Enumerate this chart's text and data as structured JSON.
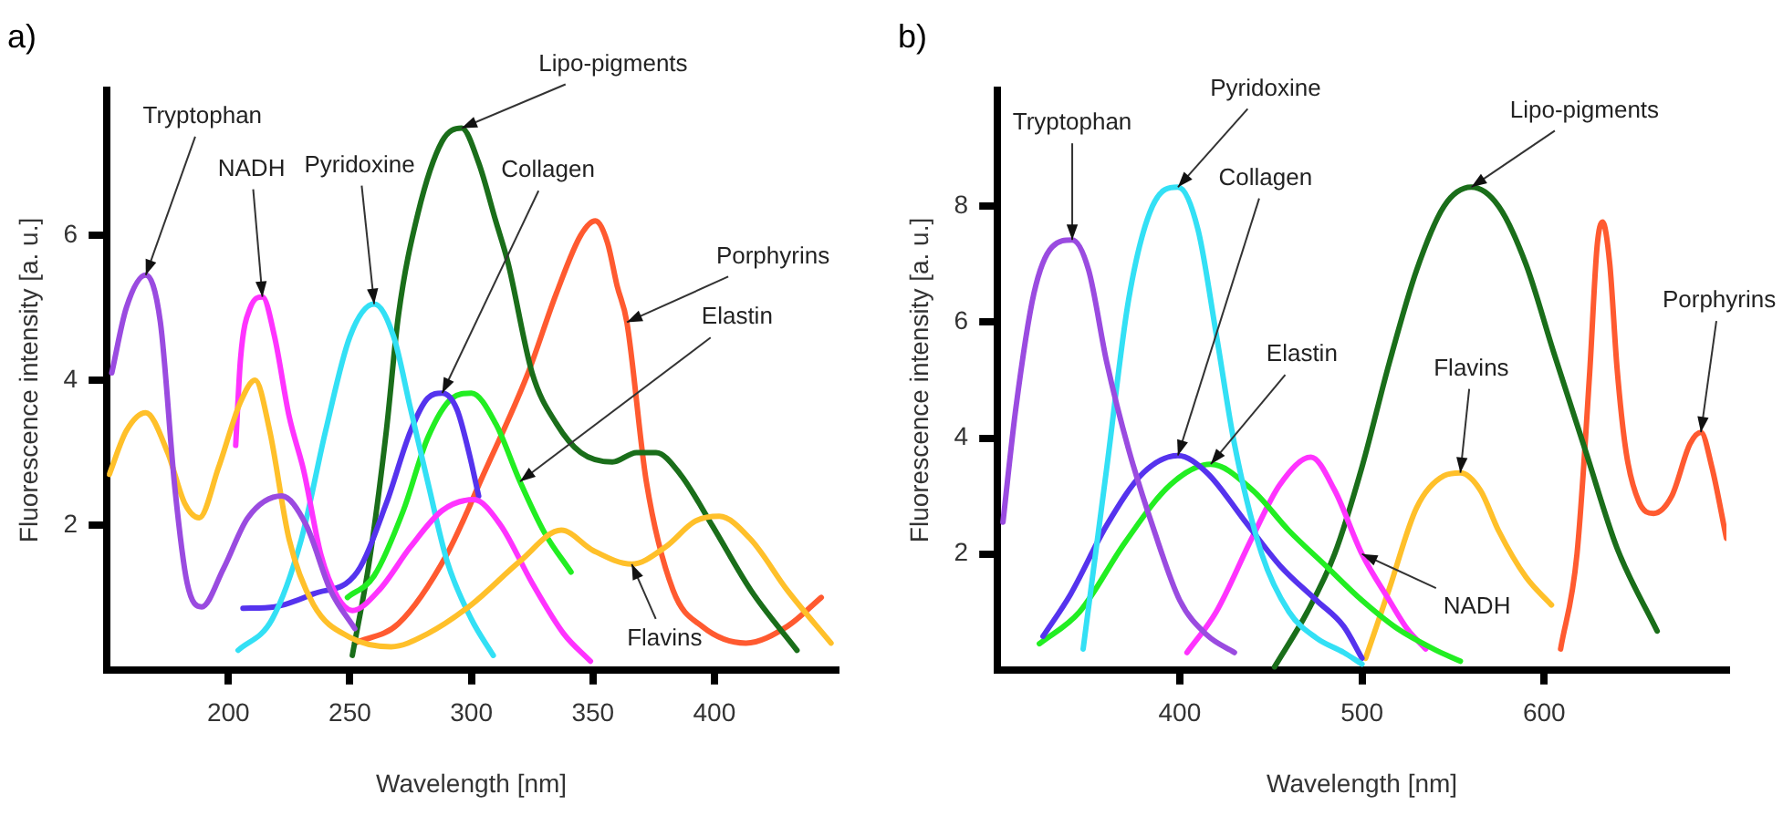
{
  "chart_data": [
    {
      "type": "line",
      "title": "a)",
      "xlabel": "Wavelength [nm]",
      "ylabel": "Fluorescence intensity [a. u.]",
      "xlim": [
        150,
        450
      ],
      "xticks": [
        200,
        250,
        300,
        350,
        400
      ],
      "ylim": [
        0,
        8
      ],
      "yticks": [
        2,
        4,
        6
      ],
      "grid": false,
      "line_style": "solid",
      "marker": "none",
      "series": [
        {
          "color": "#9a4be0",
          "x": [
            152,
            158,
            166,
            172,
            178,
            183,
            189,
            198,
            208,
            222,
            232,
            242,
            252
          ],
          "values": [
            4.1,
            5.0,
            5.45,
            4.8,
            2.5,
            1.2,
            0.87,
            1.4,
            2.1,
            2.4,
            2.0,
            1.1,
            0.57
          ]
        },
        {
          "color": "#ffc02a",
          "x": [
            151,
            158,
            166,
            175,
            182,
            188,
            196,
            205,
            211,
            217,
            225,
            235,
            250,
            267,
            282,
            300,
            320,
            337,
            350,
            366,
            380,
            392,
            402,
            415,
            430,
            448
          ],
          "values": [
            2.7,
            3.3,
            3.55,
            3.0,
            2.3,
            2.1,
            2.8,
            3.7,
            4.0,
            3.3,
            1.8,
            0.9,
            0.45,
            0.32,
            0.5,
            0.9,
            1.5,
            1.93,
            1.65,
            1.46,
            1.7,
            2.05,
            2.12,
            1.8,
            1.1,
            0.37
          ]
        },
        {
          "color": "#ff33ff",
          "x": [
            203,
            205,
            209,
            214,
            219,
            225,
            231,
            238,
            245,
            251,
            262,
            275,
            288,
            301,
            312,
            325,
            338,
            349
          ],
          "values": [
            3.1,
            4.3,
            5.0,
            5.15,
            4.6,
            3.5,
            2.75,
            1.6,
            1.0,
            0.82,
            1.1,
            1.7,
            2.2,
            2.35,
            2.0,
            1.2,
            0.5,
            0.12
          ]
        },
        {
          "color": "#33e0f5",
          "x": [
            204,
            218,
            230,
            240,
            250,
            260,
            268,
            275,
            282,
            290,
            300,
            309
          ],
          "values": [
            0.27,
            0.7,
            1.8,
            3.3,
            4.6,
            5.05,
            4.6,
            3.6,
            2.6,
            1.5,
            0.7,
            0.2
          ]
        },
        {
          "color": "#5533ee",
          "x": [
            206,
            219,
            235,
            253,
            265,
            275,
            282,
            288,
            294,
            299,
            303
          ],
          "values": [
            0.85,
            0.87,
            1.05,
            1.35,
            2.3,
            3.3,
            3.75,
            3.82,
            3.6,
            3.0,
            2.4
          ]
        },
        {
          "color": "#22ee22",
          "x": [
            249,
            260,
            272,
            282,
            292,
            300,
            310,
            320,
            330,
            341
          ],
          "values": [
            1.0,
            1.3,
            2.2,
            3.2,
            3.75,
            3.82,
            3.4,
            2.6,
            1.9,
            1.35
          ]
        },
        {
          "color": "#1a6e1a",
          "x": [
            251,
            258,
            265,
            270,
            278,
            288,
            296,
            303,
            310,
            315,
            325,
            335,
            345,
            358,
            368,
            376,
            386,
            399,
            415,
            434
          ],
          "values": [
            0.2,
            1.5,
            3.3,
            4.9,
            6.3,
            7.3,
            7.48,
            7.0,
            6.2,
            5.63,
            4.1,
            3.4,
            3.0,
            2.87,
            3.0,
            3.0,
            2.7,
            2.0,
            1.1,
            0.27
          ]
        },
        {
          "color": "#ff5a30",
          "x": [
            252,
            270,
            290,
            305,
            323,
            335,
            345,
            351,
            356,
            360,
            364,
            372,
            383,
            395,
            413,
            430,
            444
          ],
          "values": [
            0.37,
            0.64,
            1.6,
            2.7,
            4.07,
            5.2,
            6.0,
            6.2,
            5.9,
            5.3,
            4.8,
            2.6,
            1.1,
            0.6,
            0.37,
            0.6,
            1.0
          ]
        }
      ],
      "annotations": [
        {
          "text": "Tryptophan",
          "x": 166,
          "y": 5.45
        },
        {
          "text": "NADH",
          "x": 214,
          "y": 5.15
        },
        {
          "text": "Pyridoxine",
          "x": 260,
          "y": 5.05
        },
        {
          "text": "Lipo-pigments",
          "x": 296,
          "y": 7.48
        },
        {
          "text": "Collagen",
          "x": 288,
          "y": 3.82
        },
        {
          "text": "Porphyrins",
          "x": 364,
          "y": 4.8
        },
        {
          "text": "Elastin",
          "x": 320,
          "y": 2.6
        },
        {
          "text": "Flavins",
          "x": 366,
          "y": 1.46
        }
      ]
    },
    {
      "type": "line",
      "title": "b)",
      "xlabel": "Wavelength [nm]",
      "ylabel": "Fluorescence intensity [a. u.]",
      "xlim": [
        300,
        700
      ],
      "xticks": [
        400,
        500,
        600
      ],
      "ylim": [
        0,
        10
      ],
      "yticks": [
        2,
        4,
        6,
        8
      ],
      "grid": false,
      "line_style": "solid",
      "marker": "none",
      "series": [
        {
          "color": "#9a4be0",
          "x": [
            303,
            310,
            320,
            330,
            341,
            350,
            360,
            372,
            386,
            400,
            415,
            430
          ],
          "values": [
            2.55,
            4.5,
            6.5,
            7.3,
            7.42,
            6.9,
            5.3,
            3.8,
            2.4,
            1.2,
            0.6,
            0.3
          ]
        },
        {
          "color": "#33e0f5",
          "x": [
            347,
            360,
            372,
            385,
            399,
            410,
            420,
            430,
            445,
            460,
            475,
            490,
            500
          ],
          "values": [
            0.36,
            3.5,
            6.4,
            8.0,
            8.33,
            7.6,
            5.8,
            3.9,
            2.0,
            1.0,
            0.55,
            0.3,
            0.1
          ]
        },
        {
          "color": "#5533ee",
          "x": [
            325,
            340,
            360,
            380,
            399,
            415,
            435,
            455,
            475,
            490,
            500
          ],
          "values": [
            0.58,
            1.3,
            2.5,
            3.4,
            3.7,
            3.4,
            2.6,
            1.8,
            1.2,
            0.75,
            0.2
          ]
        },
        {
          "color": "#22ee22",
          "x": [
            323,
            345,
            370,
            395,
            417,
            440,
            460,
            480,
            500,
            520,
            540,
            554
          ],
          "values": [
            0.45,
            1.0,
            2.2,
            3.2,
            3.55,
            3.1,
            2.4,
            1.8,
            1.2,
            0.7,
            0.35,
            0.15
          ]
        },
        {
          "color": "#ff33ff",
          "x": [
            404,
            420,
            440,
            455,
            472,
            485,
            500,
            515,
            525,
            535
          ],
          "values": [
            0.3,
            1.0,
            2.3,
            3.2,
            3.67,
            3.1,
            2.0,
            1.2,
            0.7,
            0.36
          ]
        },
        {
          "color": "#1a6e1a",
          "x": [
            452,
            470,
            485,
            500,
            515,
            530,
            545,
            560,
            575,
            590,
            605,
            623,
            640,
            662
          ],
          "values": [
            0.05,
            1.0,
            2.0,
            3.5,
            5.3,
            6.9,
            8.0,
            8.33,
            8.0,
            7.0,
            5.5,
            3.75,
            2.1,
            0.67
          ]
        },
        {
          "color": "#ffc02a",
          "x": [
            502,
            515,
            530,
            545,
            554,
            565,
            575,
            590,
            604
          ],
          "values": [
            0.2,
            1.4,
            2.8,
            3.35,
            3.4,
            3.1,
            2.4,
            1.6,
            1.12
          ]
        },
        {
          "color": "#ff5a30",
          "x": [
            609,
            618,
            625,
            629,
            632,
            636,
            640,
            645,
            652,
            660,
            670,
            680,
            686,
            692,
            700
          ],
          "values": [
            0.36,
            2.0,
            5.15,
            7.3,
            7.73,
            7.0,
            5.2,
            3.75,
            2.9,
            2.7,
            3.0,
            3.9,
            4.1,
            3.5,
            2.27
          ]
        }
      ],
      "annotations": [
        {
          "text": "Tryptophan",
          "x": 341,
          "y": 7.42
        },
        {
          "text": "Pyridoxine",
          "x": 399,
          "y": 8.33
        },
        {
          "text": "Lipo-pigments",
          "x": 560,
          "y": 8.33
        },
        {
          "text": "Collagen",
          "x": 399,
          "y": 3.7
        },
        {
          "text": "Elastin",
          "x": 417,
          "y": 3.55
        },
        {
          "text": "Flavins",
          "x": 554,
          "y": 3.4
        },
        {
          "text": "NADH",
          "x": 500,
          "y": 2.0
        },
        {
          "text": "Porphyrins",
          "x": 686,
          "y": 4.1
        }
      ]
    }
  ]
}
